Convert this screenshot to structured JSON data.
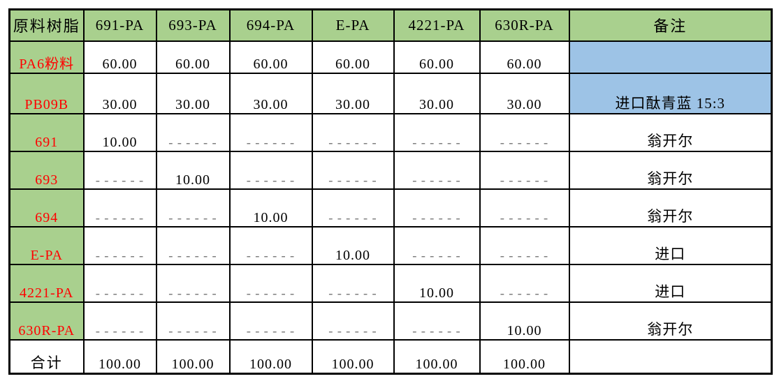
{
  "colors": {
    "header_bg": "#A9D08E",
    "row_label_bg": "#A9D08E",
    "note_highlight_bg": "#9DC3E6",
    "row_label_text": "#FF0000",
    "dash_text": "#7f7f7f",
    "border": "#000000",
    "background": "#ffffff"
  },
  "table": {
    "header": {
      "col0": "原料树脂",
      "cols": [
        "691-PA",
        "693-PA",
        "694-PA",
        "E-PA",
        "4221-PA",
        "630R-PA"
      ],
      "note": "备注"
    },
    "dash_placeholder": "------",
    "rows": [
      {
        "label": "PA6粉料",
        "values": [
          "60.00",
          "60.00",
          "60.00",
          "60.00",
          "60.00",
          "60.00"
        ],
        "note": ""
      },
      {
        "label": "PB09B",
        "values": [
          "30.00",
          "30.00",
          "30.00",
          "30.00",
          "30.00",
          "30.00"
        ],
        "note": "进口酞青蓝 15:3"
      },
      {
        "label": "691",
        "values": [
          "10.00",
          "------",
          "------",
          "------",
          "------",
          "------"
        ],
        "note": "翁开尔"
      },
      {
        "label": "693",
        "values": [
          "------",
          "10.00",
          "------",
          "------",
          "------",
          "------"
        ],
        "note": "翁开尔"
      },
      {
        "label": "694",
        "values": [
          "------",
          "------",
          "10.00",
          "------",
          "------",
          "------"
        ],
        "note": "翁开尔"
      },
      {
        "label": "E-PA",
        "values": [
          "------",
          "------",
          "------",
          "10.00",
          "------",
          "------"
        ],
        "note": "进口"
      },
      {
        "label": "4221-PA",
        "values": [
          "------",
          "------",
          "------",
          "------",
          "10.00",
          "------"
        ],
        "note": "进口"
      },
      {
        "label": "630R-PA",
        "values": [
          "------",
          "------",
          "------",
          "------",
          "------",
          "10.00"
        ],
        "note": "翁开尔"
      },
      {
        "label": "合计",
        "values": [
          "100.00",
          "100.00",
          "100.00",
          "100.00",
          "100.00",
          "100.00"
        ],
        "note": ""
      }
    ]
  }
}
